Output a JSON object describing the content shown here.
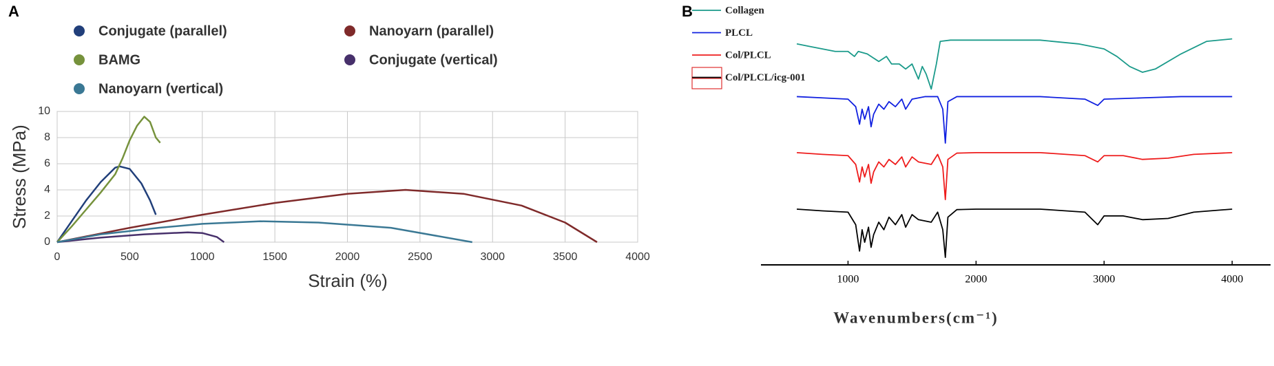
{
  "chart_data": [
    {
      "type": "line",
      "label": "A",
      "xlabel": "Strain (%)",
      "ylabel": "Stress (MPa)",
      "xlim": [
        0,
        4000
      ],
      "xticks": [
        0,
        500,
        1000,
        1500,
        2000,
        2500,
        3000,
        3500,
        4000
      ],
      "ylim": [
        0,
        10
      ],
      "yticks": [
        0,
        2,
        4,
        6,
        8,
        10
      ],
      "grid": true,
      "series": [
        {
          "name": "Conjugate (parallel)",
          "color": "#213f7a",
          "x": [
            0,
            100,
            200,
            300,
            400,
            430,
            500,
            580,
            640,
            680
          ],
          "values": [
            0,
            1.6,
            3.2,
            4.6,
            5.7,
            5.8,
            5.6,
            4.5,
            3.2,
            2.1
          ]
        },
        {
          "name": "Nanoyarn (parallel)",
          "color": "#7f2a2a",
          "x": [
            0,
            500,
            1000,
            1500,
            2000,
            2400,
            2800,
            3200,
            3500,
            3720
          ],
          "values": [
            0,
            1.1,
            2.1,
            3.0,
            3.7,
            4.0,
            3.7,
            2.8,
            1.5,
            0
          ]
        },
        {
          "name": "BAMG",
          "color": "#76923c",
          "x": [
            0,
            100,
            200,
            300,
            400,
            450,
            500,
            550,
            600,
            640,
            680,
            710
          ],
          "values": [
            0,
            1.2,
            2.5,
            3.8,
            5.2,
            6.4,
            7.8,
            8.9,
            9.6,
            9.2,
            8.0,
            7.6
          ]
        },
        {
          "name": "Conjugate (vertical)",
          "color": "#47306b",
          "x": [
            0,
            300,
            600,
            900,
            1000,
            1100,
            1150
          ],
          "values": [
            0,
            0.35,
            0.6,
            0.75,
            0.7,
            0.4,
            0
          ]
        },
        {
          "name": "Nanoyarn (vertical)",
          "color": "#3a7894",
          "x": [
            0,
            300,
            700,
            1000,
            1400,
            1800,
            2300,
            2860
          ],
          "values": [
            0,
            0.6,
            1.1,
            1.4,
            1.6,
            1.5,
            1.1,
            0
          ]
        }
      ]
    },
    {
      "type": "line",
      "label": "B",
      "xlabel": "Wavenumbers(cm⁻¹)",
      "xlim": [
        320,
        4300
      ],
      "xticks": [
        1000,
        2000,
        3000,
        4000
      ],
      "ylim": [
        0,
        100
      ],
      "grid": false,
      "series": [
        {
          "name": "Collagen",
          "color": "#1a9a8a",
          "x": [
            600,
            700,
            800,
            900,
            1000,
            1050,
            1080,
            1150,
            1240,
            1300,
            1340,
            1400,
            1450,
            1500,
            1550,
            1580,
            1610,
            1650,
            1690,
            1720,
            1800,
            2000,
            2500,
            2800,
            3000,
            3100,
            3200,
            3300,
            3400,
            3600,
            3800,
            4000
          ],
          "values": [
            88,
            87,
            86,
            85,
            85,
            83,
            85,
            84,
            81,
            83,
            80,
            80,
            78,
            80,
            74,
            79,
            76,
            70,
            80,
            89,
            89.5,
            89.5,
            89.5,
            88,
            86,
            83,
            79,
            76.7,
            78,
            84,
            89,
            90
          ]
        },
        {
          "name": "PLCL",
          "color": "#1020e0",
          "x": [
            600,
            800,
            1000,
            1060,
            1090,
            1110,
            1130,
            1160,
            1180,
            1200,
            1240,
            1280,
            1320,
            1370,
            1420,
            1450,
            1500,
            1600,
            1700,
            1740,
            1760,
            1780,
            1850,
            2000,
            2500,
            2850,
            2950,
            3000,
            3300,
            3600,
            4000
          ],
          "values": [
            67,
            66.5,
            66,
            63,
            56,
            62,
            58,
            63,
            55,
            60,
            64,
            62,
            65,
            63,
            66,
            62,
            66,
            67,
            67,
            62,
            48.5,
            65,
            67,
            67,
            67,
            66,
            63.5,
            66,
            66.5,
            67,
            67
          ]
        },
        {
          "name": "Col/PLCL",
          "color": "#ee1c1c",
          "x": [
            600,
            800,
            1000,
            1060,
            1090,
            1110,
            1130,
            1160,
            1180,
            1200,
            1240,
            1280,
            1320,
            1370,
            1420,
            1450,
            1500,
            1550,
            1650,
            1700,
            1740,
            1760,
            1780,
            1850,
            2000,
            2500,
            2850,
            2950,
            3000,
            3150,
            3300,
            3500,
            3700,
            4000
          ],
          "values": [
            44.7,
            44,
            43.5,
            40,
            33,
            39,
            35,
            40,
            32.5,
            37,
            41,
            39,
            42,
            40,
            43,
            39,
            43,
            41,
            40,
            44,
            39,
            26,
            42,
            44.5,
            44.7,
            44.7,
            43.5,
            41,
            43.5,
            43.5,
            42,
            42.5,
            44,
            44.7
          ]
        },
        {
          "name": "Col/PLCL/icg-001",
          "color": "#000000",
          "x": [
            600,
            800,
            1000,
            1060,
            1090,
            1110,
            1130,
            1160,
            1180,
            1200,
            1240,
            1280,
            1320,
            1370,
            1420,
            1450,
            1500,
            1550,
            1650,
            1700,
            1740,
            1760,
            1780,
            1850,
            2000,
            2500,
            2850,
            2950,
            3000,
            3150,
            3300,
            3500,
            3700,
            4000
          ],
          "values": [
            22.2,
            21.5,
            21,
            16,
            5.5,
            14,
            9,
            15,
            7,
            12,
            17,
            14,
            19,
            16,
            20,
            15,
            20,
            18,
            17,
            21,
            14,
            3,
            19,
            22,
            22.2,
            22.2,
            21,
            16,
            19.5,
            19.5,
            18,
            18.5,
            21,
            22.2
          ]
        }
      ]
    }
  ]
}
